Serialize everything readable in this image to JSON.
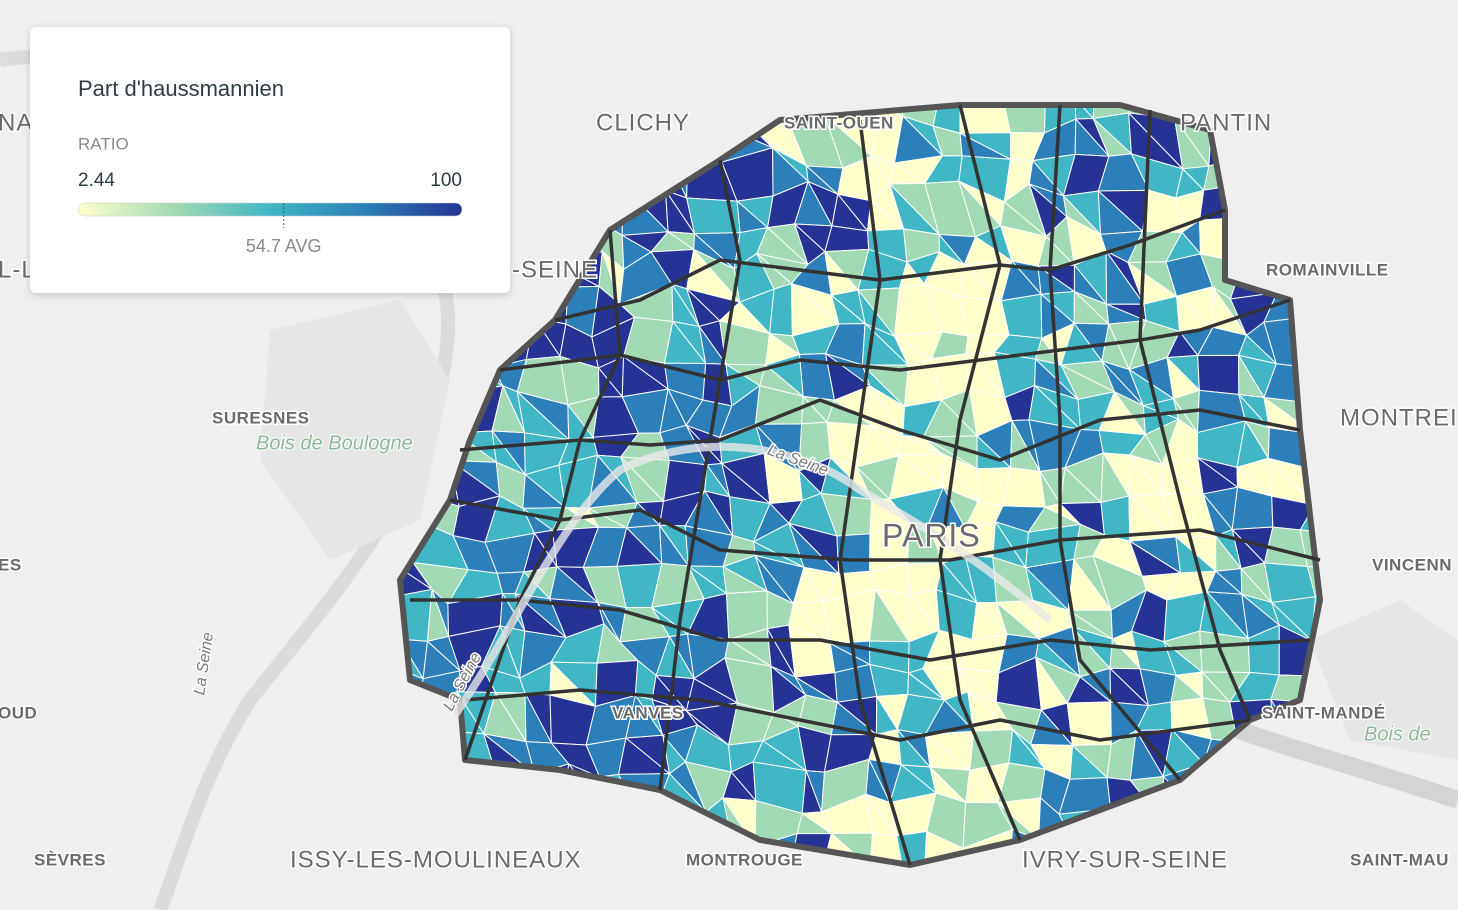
{
  "legend": {
    "title": "Part d'haussmannien",
    "metric": "RATIO",
    "min": 2.44,
    "max": 100,
    "average": {
      "value": 54.7,
      "label": "54.7 AVG"
    },
    "colors": [
      "#ffffcc",
      "#a1dab4",
      "#41b6c4",
      "#2c7fb8",
      "#253494"
    ]
  },
  "map_labels": [
    "CLICHY",
    "SAINT-OUEN",
    "PANTIN",
    "ROMAINVILLE",
    "MONTREI",
    "SURESNES",
    "Bois de Boulogne",
    "La Seine",
    "La Seine",
    "La Seine",
    "PARIS",
    "VINCENN",
    "SAINT-MANDÉ",
    "Bois de",
    "VANVES",
    "ISSY-LES-MOULINEAUX",
    "MONTROUGE",
    "IVRY-SUR-SEINE",
    "SÈVRES",
    "SAINT-MAU",
    "-SEINE",
    "NA",
    "L-L",
    "ES",
    "OUD"
  ]
}
